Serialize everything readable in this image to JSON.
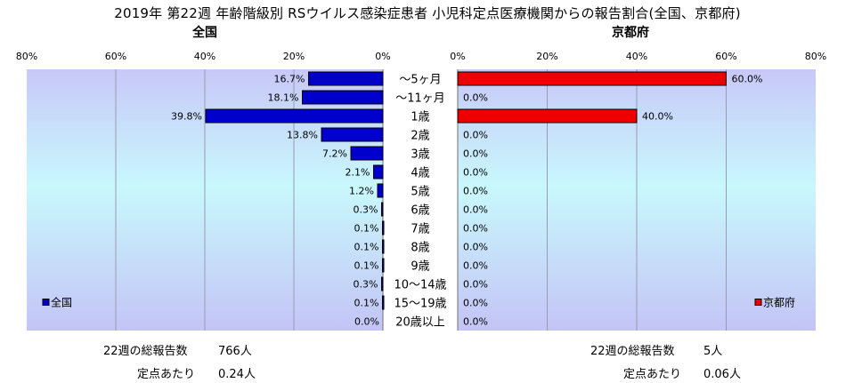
{
  "title": "2019年 第22週 年齢階級別 RSウイルス感染症患者 小児科定点医療機関からの報告割合(全国、京都府)",
  "colors": {
    "national": "#0000cc",
    "kyoto": "#ee0000"
  },
  "chart_data": [
    {
      "type": "bar",
      "title": "全国",
      "legend": "全国",
      "legend_position": "bottom-left",
      "orientation": "horizontal-reversed",
      "xlim": [
        0,
        80
      ],
      "ticks": [
        "80%",
        "60%",
        "40%",
        "20%",
        "0%"
      ],
      "categories": [
        "〜5ヶ月",
        "〜11ヶ月",
        "1歳",
        "2歳",
        "3歳",
        "4歳",
        "5歳",
        "6歳",
        "7歳",
        "8歳",
        "9歳",
        "10〜14歳",
        "15〜19歳",
        "20歳以上"
      ],
      "values": [
        16.7,
        18.1,
        39.8,
        13.8,
        7.2,
        2.1,
        1.2,
        0.3,
        0.1,
        0.1,
        0.1,
        0.3,
        0.1,
        0.0
      ],
      "labels": [
        "16.7%",
        "18.1%",
        "39.8%",
        "13.8%",
        "7.2%",
        "2.1%",
        "1.2%",
        "0.3%",
        "0.1%",
        "0.1%",
        "0.1%",
        "0.3%",
        "0.1%",
        "0.0%"
      ],
      "grid": true
    },
    {
      "type": "bar",
      "title": "京都府",
      "legend": "京都府",
      "legend_position": "bottom-right",
      "orientation": "horizontal",
      "xlim": [
        0,
        80
      ],
      "ticks": [
        "0%",
        "20%",
        "40%",
        "60%",
        "80%"
      ],
      "categories": [
        "〜5ヶ月",
        "〜11ヶ月",
        "1歳",
        "2歳",
        "3歳",
        "4歳",
        "5歳",
        "6歳",
        "7歳",
        "8歳",
        "9歳",
        "10〜14歳",
        "15〜19歳",
        "20歳以上"
      ],
      "values": [
        60.0,
        0.0,
        40.0,
        0.0,
        0.0,
        0.0,
        0.0,
        0.0,
        0.0,
        0.0,
        0.0,
        0.0,
        0.0,
        0.0
      ],
      "labels": [
        "60.0%",
        "0.0%",
        "40.0%",
        "0.0%",
        "0.0%",
        "0.0%",
        "0.0%",
        "0.0%",
        "0.0%",
        "0.0%",
        "0.0%",
        "0.0%",
        "0.0%",
        "0.0%"
      ],
      "grid": true
    }
  ],
  "summary": {
    "national": {
      "total_label": "22週の総報告数",
      "total_value": "766人",
      "per_label": "定点あたり",
      "per_value": "0.24人"
    },
    "kyoto": {
      "total_label": "22週の総報告数",
      "total_value": "5人",
      "per_label": "定点あたり",
      "per_value": "0.06人"
    }
  }
}
